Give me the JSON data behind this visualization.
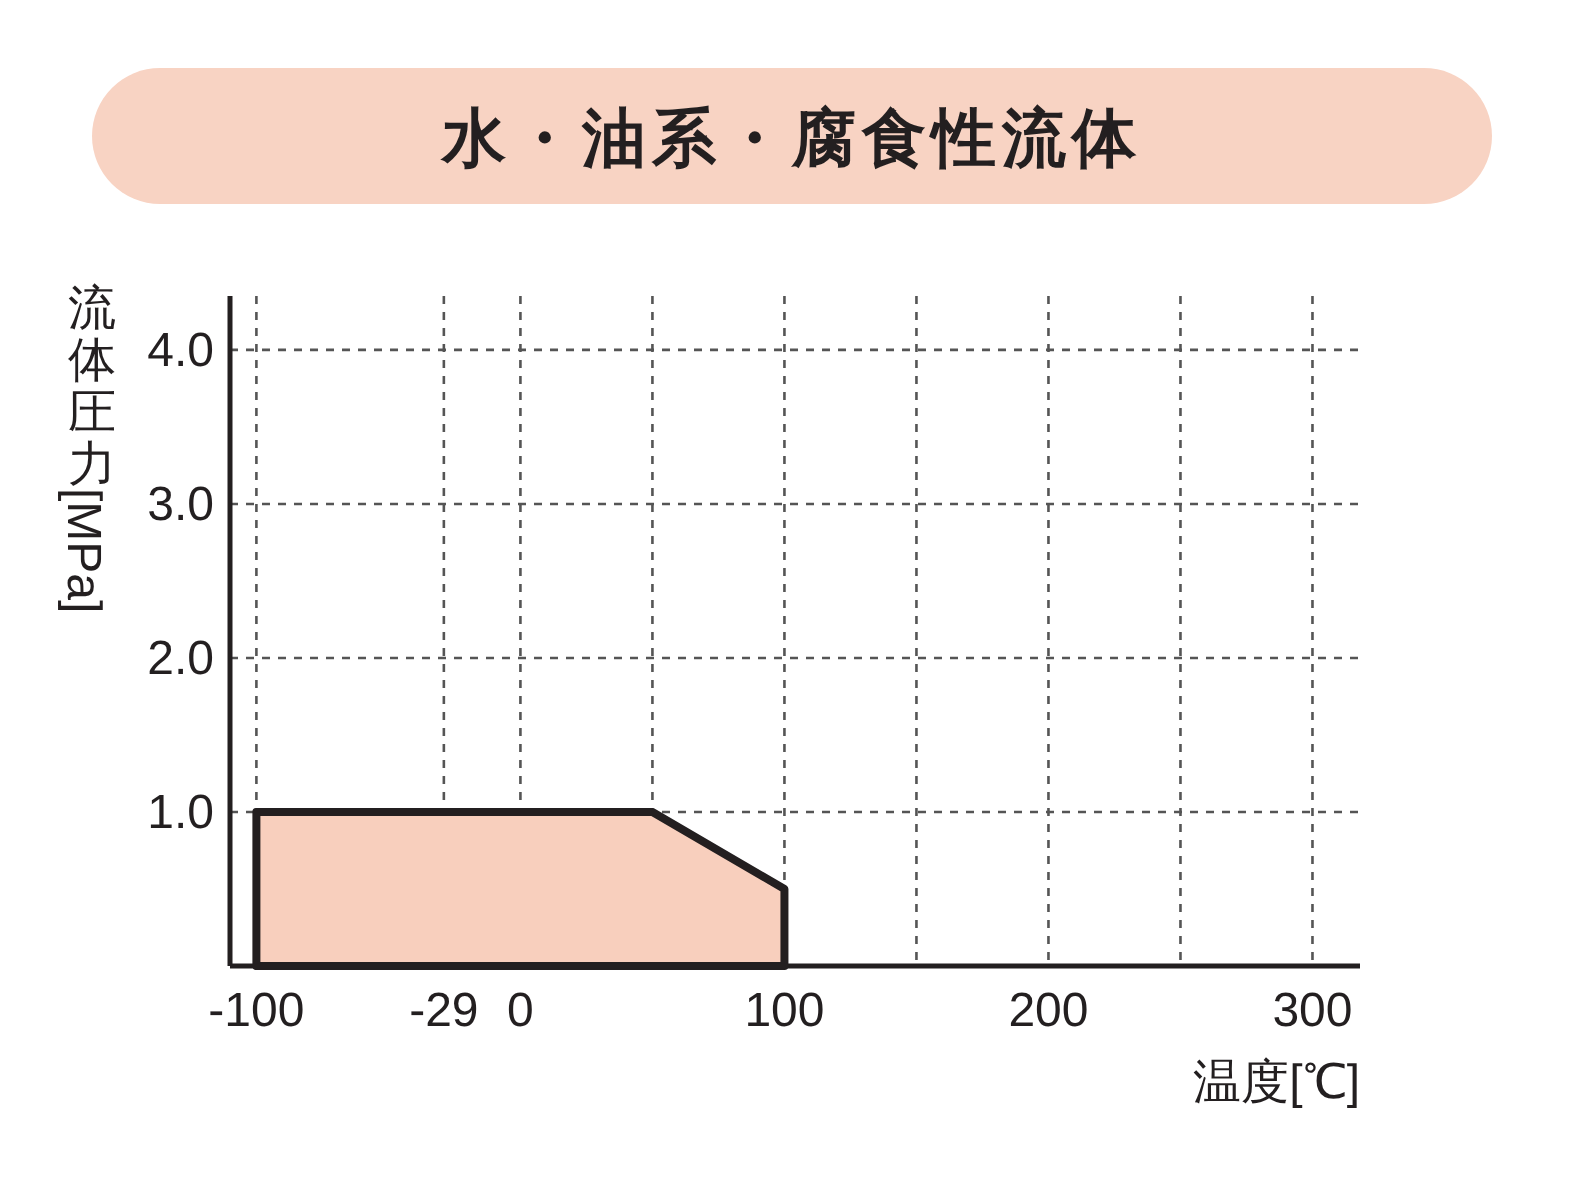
{
  "chart_data": {
    "type": "area",
    "title": "水・油系・腐食性流体",
    "xlabel": "温度[℃]",
    "ylabel": "流体圧力 [MPa]",
    "series": [
      {
        "color": "#f8cfbd",
        "x": [
          -100,
          50,
          100
        ],
        "values": [
          1.0,
          1.0,
          0.5
        ]
      }
    ],
    "xlim": [
      -110,
      318
    ],
    "ylim": [
      0,
      4.35
    ],
    "xticks": [
      -100,
      -29,
      0,
      {
        "value": 50,
        "label": null
      },
      100,
      {
        "value": 150,
        "label": null
      },
      200,
      {
        "value": 250,
        "label": null
      },
      300
    ],
    "yticks": [
      {
        "value": 1,
        "label": "1.0"
      },
      {
        "value": 2,
        "label": "2.0"
      },
      {
        "value": 3,
        "label": "3.0"
      },
      {
        "value": 4,
        "label": "4.0"
      }
    ],
    "grid": true
  }
}
